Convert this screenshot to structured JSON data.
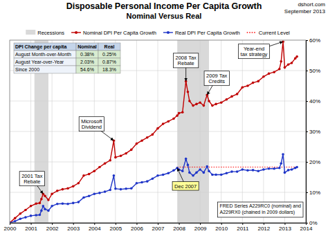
{
  "chart_data": {
    "type": "line",
    "title": "Disposable Personal Income Per Capita Growth",
    "subtitle": "Nominal Versus Real",
    "source": "dshort.com",
    "date": "September 2013",
    "legend": "top",
    "grid": true,
    "xlim": [
      2000,
      2014
    ],
    "xticks": [
      2000,
      2001,
      2002,
      2003,
      2004,
      2005,
      2006,
      2007,
      2008,
      2009,
      2010,
      2011,
      2012,
      2013,
      2014
    ],
    "ylim": [
      0,
      60
    ],
    "yticks": [
      {
        "value": 0,
        "label": "0%"
      },
      {
        "value": 10,
        "label": "10%"
      },
      {
        "value": 20,
        "label": "20%"
      },
      {
        "value": 30,
        "label": "30%"
      },
      {
        "value": 40,
        "label": "40%"
      },
      {
        "value": 50,
        "label": "50%"
      },
      {
        "value": 60,
        "label": "60%"
      }
    ],
    "x": [
      2000.0,
      2000.25,
      2000.5,
      2000.75,
      2001.0,
      2001.25,
      2001.42,
      2001.5,
      2001.58,
      2001.67,
      2001.83,
      2002.0,
      2002.25,
      2002.5,
      2002.75,
      2003.0,
      2003.25,
      2003.5,
      2003.75,
      2004.0,
      2004.25,
      2004.5,
      2004.75,
      2004.92,
      2005.0,
      2005.25,
      2005.5,
      2005.75,
      2006.0,
      2006.25,
      2006.5,
      2006.75,
      2007.0,
      2007.25,
      2007.5,
      2007.75,
      2007.92,
      2008.0,
      2008.17,
      2008.33,
      2008.42,
      2008.5,
      2008.67,
      2008.83,
      2009.0,
      2009.17,
      2009.33,
      2009.42,
      2009.58,
      2009.75,
      2010.0,
      2010.25,
      2010.5,
      2010.75,
      2011.0,
      2011.25,
      2011.5,
      2011.75,
      2012.0,
      2012.25,
      2012.5,
      2012.75,
      2012.83,
      2012.92,
      2013.0,
      2013.17,
      2013.33,
      2013.5,
      2013.58
    ],
    "series": [
      {
        "name": "Nominal DPI Per Capita Growth",
        "color": "#c00000",
        "marker": "circle",
        "line_style": "solid",
        "values": [
          0,
          1.5,
          3.0,
          4.2,
          5.5,
          6.3,
          6.5,
          7.8,
          9.5,
          8.8,
          7.5,
          9.5,
          10.5,
          11.0,
          11.3,
          12.0,
          13.0,
          15.5,
          16.0,
          17.0,
          18.3,
          19.5,
          20.5,
          27.0,
          21.5,
          22.0,
          22.8,
          24.0,
          26.0,
          27.0,
          28.0,
          29.0,
          31.0,
          32.5,
          33.3,
          34.2,
          35.2,
          36.0,
          36.3,
          46.5,
          43.0,
          40.0,
          38.5,
          39.0,
          39.5,
          38.5,
          42.0,
          40.0,
          38.5,
          39.0,
          39.5,
          40.5,
          41.5,
          42.3,
          44.5,
          45.0,
          46.0,
          46.5,
          48.0,
          49.0,
          49.5,
          50.5,
          53.0,
          59.5,
          51.0,
          52.0,
          52.5,
          54.0,
          54.6
        ]
      },
      {
        "name": "Real DPI Per Capita Growth",
        "color": "#1f35c8",
        "marker": "circle",
        "line_style": "solid",
        "values": [
          0,
          0.5,
          1.3,
          1.8,
          2.3,
          2.5,
          2.6,
          4.0,
          5.5,
          4.5,
          4.0,
          5.5,
          6.2,
          6.3,
          6.2,
          6.5,
          6.8,
          8.3,
          8.8,
          9.5,
          9.8,
          10.2,
          10.8,
          15.5,
          11.2,
          11.0,
          11.2,
          11.3,
          13.0,
          13.3,
          13.6,
          14.5,
          15.5,
          15.8,
          16.3,
          17.2,
          18.0,
          17.5,
          17.0,
          21.0,
          19.0,
          16.5,
          15.5,
          16.5,
          17.5,
          16.5,
          18.5,
          17.0,
          15.8,
          15.8,
          15.8,
          16.3,
          16.8,
          16.8,
          17.5,
          17.2,
          17.3,
          17.0,
          17.5,
          17.8,
          17.8,
          18.0,
          19.5,
          22.5,
          16.5,
          17.3,
          17.5,
          18.0,
          18.3
        ]
      }
    ],
    "recessions": {
      "name": "Recessions",
      "color": "#d9d9d9",
      "periods": [
        [
          2001.17,
          2001.83
        ],
        [
          2007.92,
          2009.42
        ]
      ]
    },
    "current_level": {
      "name": "Current Level",
      "color": "#ff0000",
      "line_style": "dotted",
      "value": 18.3,
      "x": [
        2007.92,
        2013.58
      ]
    },
    "table": {
      "header": [
        "DPI Change per capita",
        "Nominal",
        "Real"
      ],
      "rows": [
        [
          "August Month-over-Month",
          "0.38%",
          "0.25%"
        ],
        [
          "August Year-over-Year",
          "2.03%",
          "0.87%"
        ],
        [
          "Since 2000",
          "54.6%",
          "18.3%"
        ]
      ]
    },
    "annotations": [
      {
        "lines": [
          "2001 Tax",
          "Rebate"
        ],
        "x": 2001.58,
        "y": 9.5
      },
      {
        "lines": [
          "Microsoft",
          "Dividend"
        ],
        "x": 2004.92,
        "y": 27.0
      },
      {
        "lines": [
          "2008 Tax",
          "Rebate"
        ],
        "x": 2008.33,
        "y": 46.5
      },
      {
        "lines": [
          "2009 Tax",
          "Credits"
        ],
        "x": 2009.33,
        "y": 42.0
      },
      {
        "lines": [
          "Year-end",
          "tax strategy"
        ],
        "x": 2012.92,
        "y": 59.5
      },
      {
        "lines": [
          "Dec 2007"
        ],
        "x": 2007.92,
        "y": 18.0,
        "color": "#ffff99"
      }
    ],
    "note": [
      "FRED Series A229RC0 (nominal) and",
      "A229RX0 (chained in 2009 dollars)"
    ]
  }
}
